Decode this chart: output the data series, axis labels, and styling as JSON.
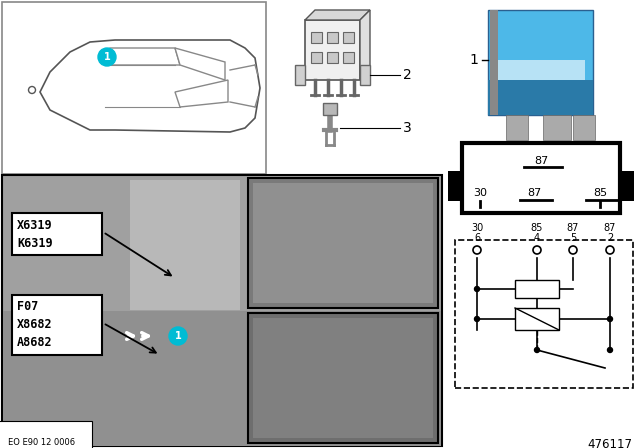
{
  "bg_color": "#ffffff",
  "label_color": "#00bcd4",
  "part_number": "476117",
  "eo_label": "EO E90 12 0006",
  "labels_box1": [
    "K6319",
    "X6319"
  ],
  "labels_box2": [
    "A8682",
    "X8682",
    "F07"
  ],
  "pin_top_labels": [
    "87",
    "30",
    "87",
    "85"
  ],
  "pin_bot_top": [
    "6",
    "4",
    "5",
    "2"
  ],
  "pin_bot_bot": [
    "30",
    "85",
    "87",
    "87"
  ],
  "relay_blue": "#4db8e8",
  "relay_dark": "#2a7aa8",
  "gray_photo": "#a0a0a0",
  "gray_inset": "#888888",
  "gray_light": "#c8c8c8"
}
